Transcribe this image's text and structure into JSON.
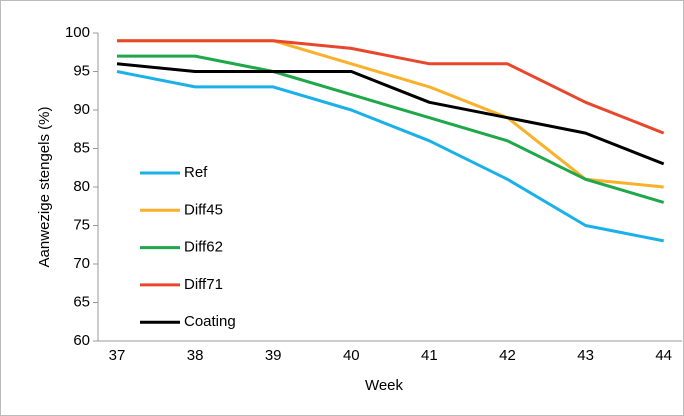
{
  "chart_data": {
    "type": "line",
    "x_label": "Week",
    "y_label": "Aanwezige stengels (%)",
    "categories": [
      "37",
      "38",
      "39",
      "40",
      "41",
      "42",
      "43",
      "44"
    ],
    "ylim": [
      60,
      100
    ],
    "yticks": [
      60,
      65,
      70,
      75,
      80,
      85,
      90,
      95,
      100
    ],
    "grid": false,
    "legend": "left",
    "series": [
      {
        "name": "Ref",
        "color": "#1ab0e8",
        "values": [
          95,
          93,
          93,
          90,
          86,
          81,
          75,
          73
        ]
      },
      {
        "name": "Diff45",
        "color": "#f9b02a",
        "values": [
          99,
          99,
          99,
          96,
          93,
          89,
          81,
          80
        ]
      },
      {
        "name": "Diff62",
        "color": "#1ea84a",
        "values": [
          97,
          97,
          95,
          92,
          89,
          86,
          81,
          78
        ]
      },
      {
        "name": "Diff71",
        "color": "#e8472c",
        "values": [
          99,
          99,
          99,
          98,
          96,
          96,
          91,
          87
        ]
      },
      {
        "name": "Coating",
        "color": "#000000",
        "values": [
          96,
          95,
          95,
          95,
          91,
          89,
          87,
          83
        ]
      }
    ]
  }
}
